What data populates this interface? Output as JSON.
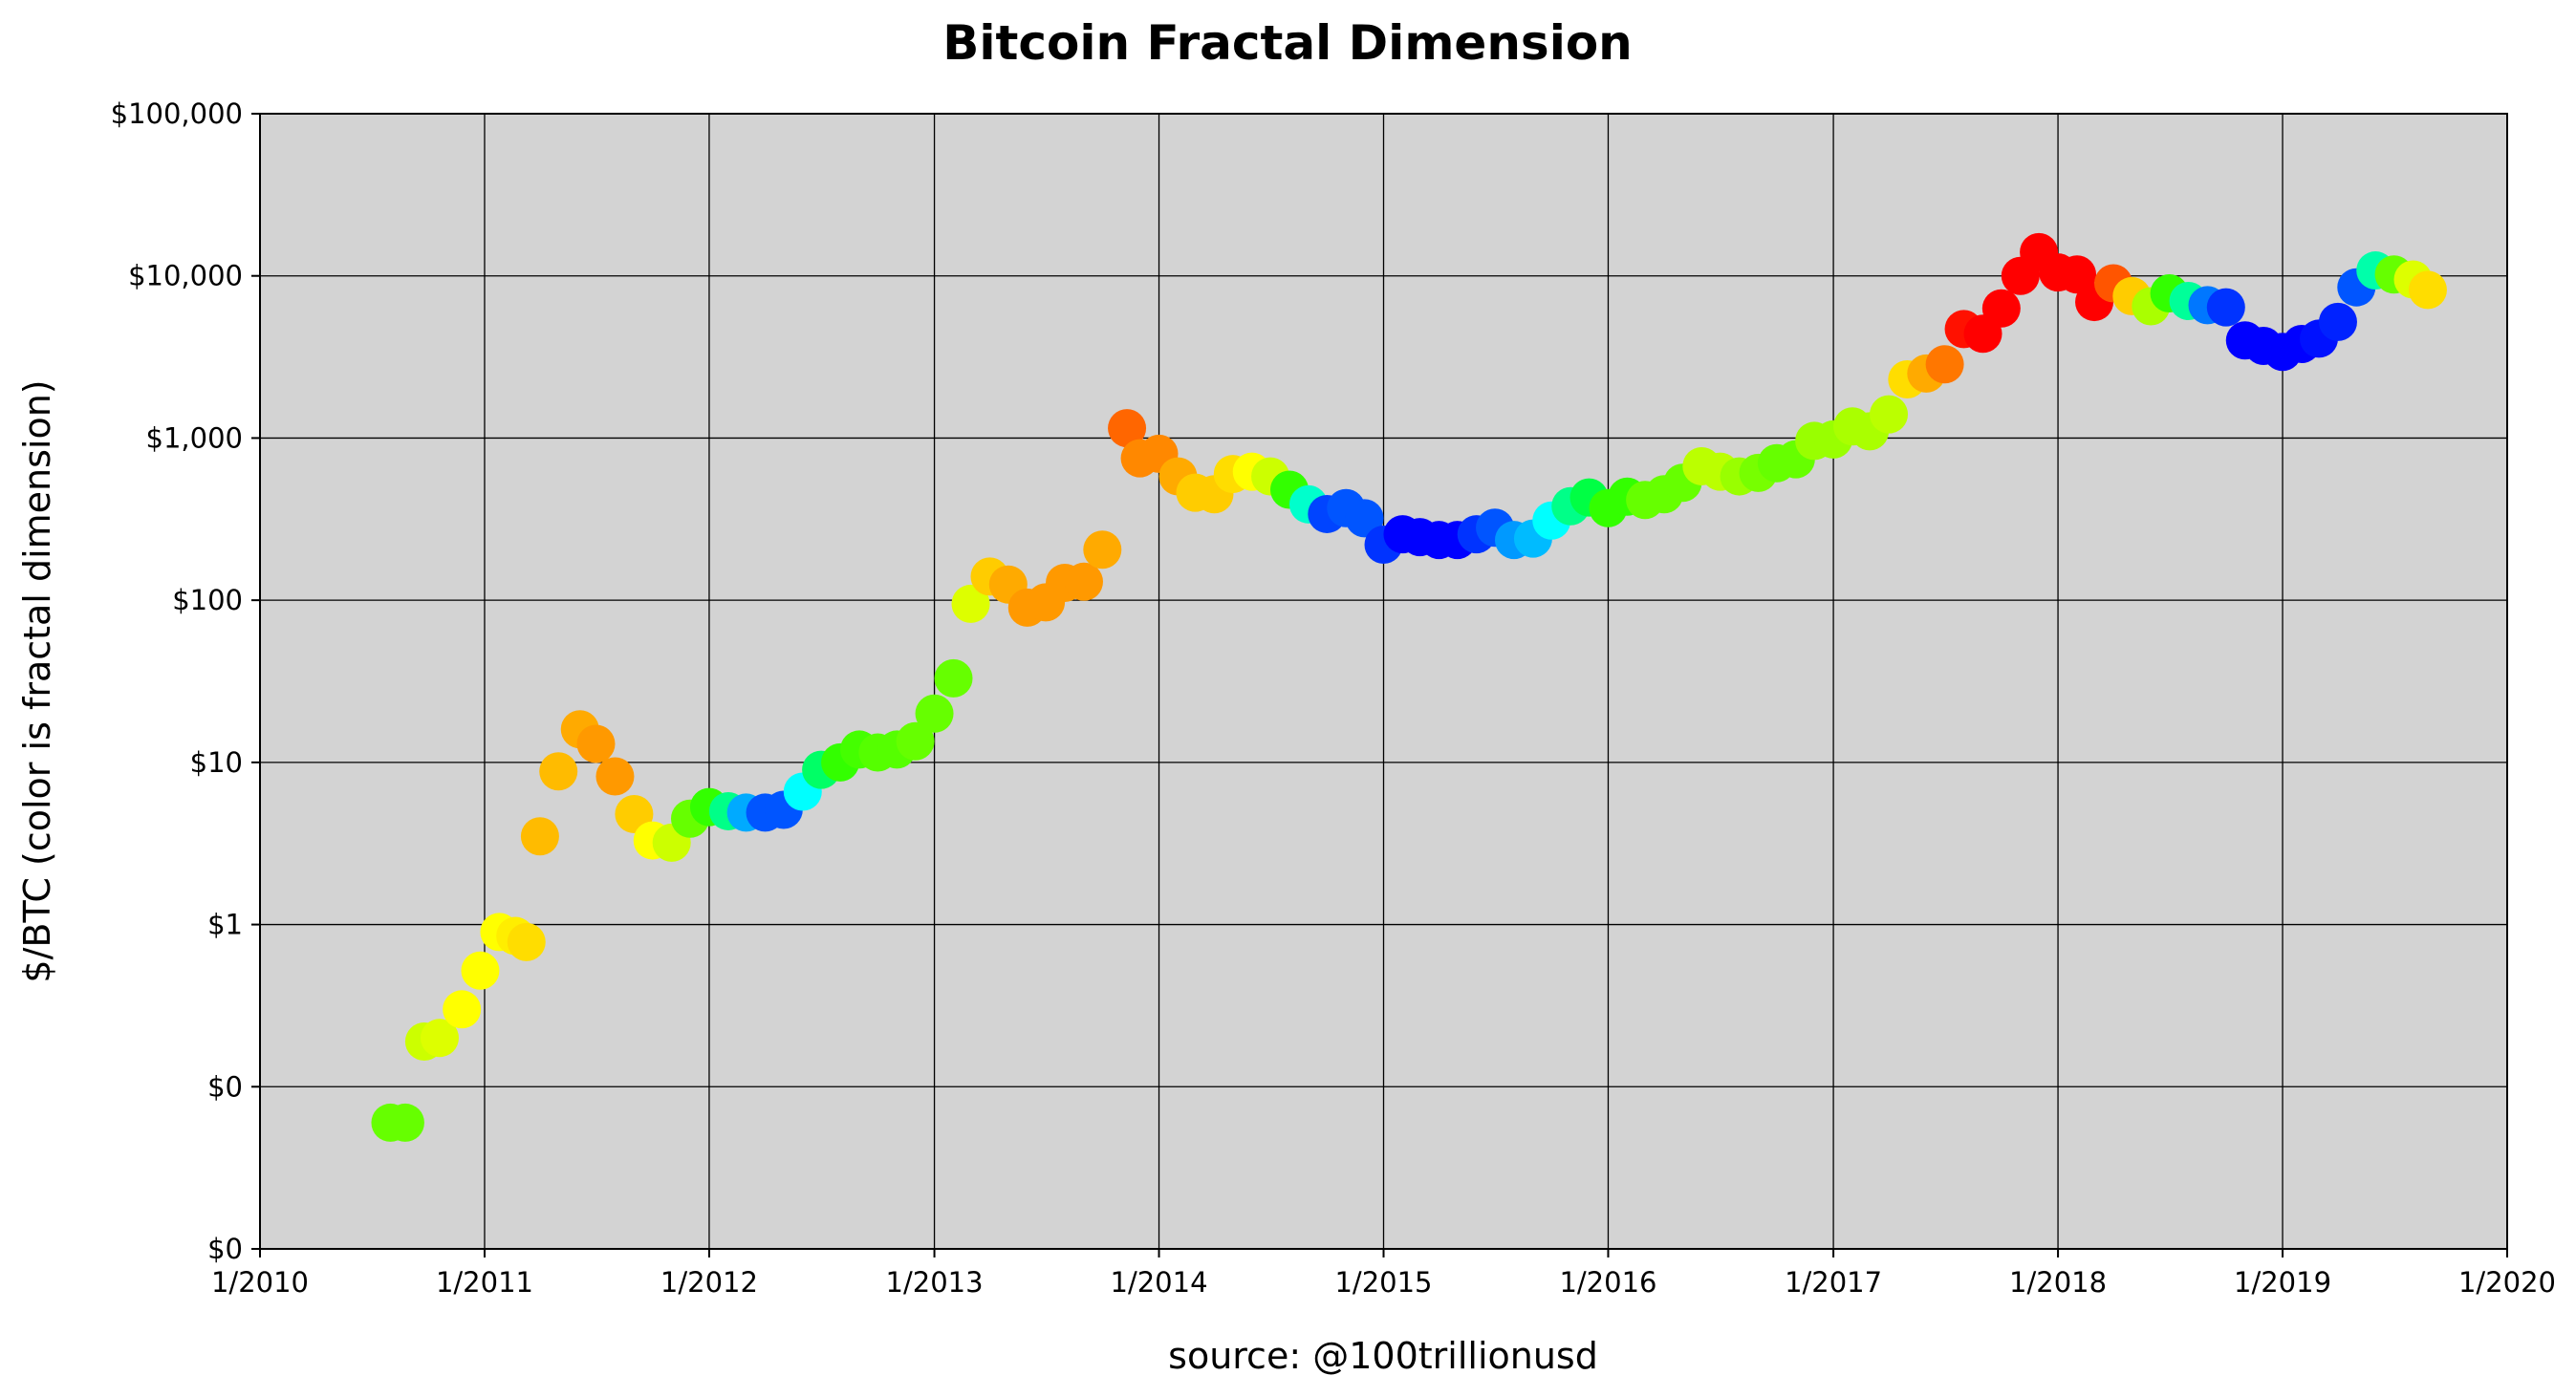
{
  "chart_data": {
    "type": "scatter",
    "title": "Bitcoin Fractal Dimension",
    "xlabel": "source: @100trillionusd",
    "ylabel": "$/BTC (color is fractal dimension)",
    "x_scale": "time",
    "y_scale": "log",
    "xlim": [
      "2010-01-01",
      "2020-01-01"
    ],
    "ylim": [
      0.01,
      100000
    ],
    "grid": true,
    "background": "#d3d3d3",
    "x_ticks": [
      {
        "date": "2010-01-01",
        "label": "1/2010"
      },
      {
        "date": "2011-01-01",
        "label": "1/2011"
      },
      {
        "date": "2012-01-01",
        "label": "1/2012"
      },
      {
        "date": "2013-01-01",
        "label": "1/2013"
      },
      {
        "date": "2014-01-01",
        "label": "1/2014"
      },
      {
        "date": "2015-01-01",
        "label": "1/2015"
      },
      {
        "date": "2016-01-01",
        "label": "1/2016"
      },
      {
        "date": "2017-01-01",
        "label": "1/2017"
      },
      {
        "date": "2018-01-01",
        "label": "1/2018"
      },
      {
        "date": "2019-01-01",
        "label": "1/2019"
      },
      {
        "date": "2020-01-01",
        "label": "1/2020"
      }
    ],
    "y_ticks": [
      {
        "value": 0.01,
        "label": "$0"
      },
      {
        "value": 0.1,
        "label": "$0"
      },
      {
        "value": 1,
        "label": "$1"
      },
      {
        "value": 10,
        "label": "$10"
      },
      {
        "value": 100,
        "label": "$100"
      },
      {
        "value": 1000,
        "label": "$1,000"
      },
      {
        "value": 10000,
        "label": "$10,000"
      },
      {
        "value": 100000,
        "label": "$100,000"
      }
    ],
    "points": [
      {
        "date": "2010-08-01",
        "price": 0.06,
        "color": "#66ff00"
      },
      {
        "date": "2010-08-25",
        "price": 0.06,
        "color": "#66ff00"
      },
      {
        "date": "2010-09-25",
        "price": 0.19,
        "color": "#ccff00"
      },
      {
        "date": "2010-10-20",
        "price": 0.2,
        "color": "#ddff00"
      },
      {
        "date": "2010-11-25",
        "price": 0.3,
        "color": "#ffff00"
      },
      {
        "date": "2010-12-25",
        "price": 0.52,
        "color": "#ffff00"
      },
      {
        "date": "2011-01-25",
        "price": 0.9,
        "color": "#ffff00"
      },
      {
        "date": "2011-02-20",
        "price": 0.85,
        "color": "#ffee00"
      },
      {
        "date": "2011-03-10",
        "price": 0.78,
        "color": "#ffdd00"
      },
      {
        "date": "2011-04-01",
        "price": 3.5,
        "color": "#ffbb00"
      },
      {
        "date": "2011-05-01",
        "price": 8.8,
        "color": "#ffbb00"
      },
      {
        "date": "2011-06-05",
        "price": 16,
        "color": "#ffaa00"
      },
      {
        "date": "2011-07-01",
        "price": 13,
        "color": "#ff9900"
      },
      {
        "date": "2011-08-01",
        "price": 8.2,
        "color": "#ff9900"
      },
      {
        "date": "2011-09-01",
        "price": 4.8,
        "color": "#ffcc00"
      },
      {
        "date": "2011-10-01",
        "price": 3.3,
        "color": "#ffff00"
      },
      {
        "date": "2011-11-01",
        "price": 3.2,
        "color": "#ccff00"
      },
      {
        "date": "2011-12-01",
        "price": 4.5,
        "color": "#66ff00"
      },
      {
        "date": "2012-01-01",
        "price": 5.3,
        "color": "#33ff00"
      },
      {
        "date": "2012-02-01",
        "price": 5.0,
        "color": "#00ff88"
      },
      {
        "date": "2012-03-01",
        "price": 4.9,
        "color": "#00aaff"
      },
      {
        "date": "2012-04-01",
        "price": 4.9,
        "color": "#0055ff"
      },
      {
        "date": "2012-05-01",
        "price": 5.1,
        "color": "#0055ff"
      },
      {
        "date": "2012-06-01",
        "price": 6.6,
        "color": "#00ffff"
      },
      {
        "date": "2012-07-01",
        "price": 9.0,
        "color": "#00ff66"
      },
      {
        "date": "2012-08-01",
        "price": 10,
        "color": "#33ff00"
      },
      {
        "date": "2012-09-01",
        "price": 12,
        "color": "#44ff00"
      },
      {
        "date": "2012-10-01",
        "price": 11.5,
        "color": "#55ff00"
      },
      {
        "date": "2012-11-01",
        "price": 12,
        "color": "#55ff00"
      },
      {
        "date": "2012-12-01",
        "price": 13.5,
        "color": "#66ff00"
      },
      {
        "date": "2013-01-01",
        "price": 20,
        "color": "#66ff00"
      },
      {
        "date": "2013-02-01",
        "price": 33,
        "color": "#66ff00"
      },
      {
        "date": "2013-03-01",
        "price": 95,
        "color": "#ddff00"
      },
      {
        "date": "2013-04-01",
        "price": 140,
        "color": "#ffcc00"
      },
      {
        "date": "2013-05-01",
        "price": 125,
        "color": "#ffaa00"
      },
      {
        "date": "2013-06-01",
        "price": 90,
        "color": "#ff9900"
      },
      {
        "date": "2013-07-01",
        "price": 97,
        "color": "#ff9900"
      },
      {
        "date": "2013-08-01",
        "price": 128,
        "color": "#ff9900"
      },
      {
        "date": "2013-09-01",
        "price": 130,
        "color": "#ff9900"
      },
      {
        "date": "2013-10-01",
        "price": 205,
        "color": "#ffaa00"
      },
      {
        "date": "2013-11-10",
        "price": 1150,
        "color": "#ff6600"
      },
      {
        "date": "2013-12-01",
        "price": 750,
        "color": "#ff8800"
      },
      {
        "date": "2014-01-01",
        "price": 800,
        "color": "#ff8800"
      },
      {
        "date": "2014-02-01",
        "price": 580,
        "color": "#ffaa00"
      },
      {
        "date": "2014-03-01",
        "price": 460,
        "color": "#ffcc00"
      },
      {
        "date": "2014-04-01",
        "price": 450,
        "color": "#ffcc00"
      },
      {
        "date": "2014-05-01",
        "price": 600,
        "color": "#ffdd00"
      },
      {
        "date": "2014-06-01",
        "price": 620,
        "color": "#ffff00"
      },
      {
        "date": "2014-07-01",
        "price": 580,
        "color": "#ccff00"
      },
      {
        "date": "2014-08-01",
        "price": 480,
        "color": "#33ff00"
      },
      {
        "date": "2014-09-01",
        "price": 390,
        "color": "#00ffcc"
      },
      {
        "date": "2014-10-01",
        "price": 340,
        "color": "#0044ff"
      },
      {
        "date": "2014-11-01",
        "price": 370,
        "color": "#0055ff"
      },
      {
        "date": "2014-12-01",
        "price": 320,
        "color": "#0055ff"
      },
      {
        "date": "2015-01-01",
        "price": 220,
        "color": "#0033ff"
      },
      {
        "date": "2015-02-01",
        "price": 255,
        "color": "#0000ff"
      },
      {
        "date": "2015-03-01",
        "price": 245,
        "color": "#0000ff"
      },
      {
        "date": "2015-04-01",
        "price": 235,
        "color": "#0000ff"
      },
      {
        "date": "2015-05-01",
        "price": 235,
        "color": "#0000ff"
      },
      {
        "date": "2015-06-01",
        "price": 255,
        "color": "#0033ff"
      },
      {
        "date": "2015-07-01",
        "price": 280,
        "color": "#0055ff"
      },
      {
        "date": "2015-08-01",
        "price": 235,
        "color": "#0099ff"
      },
      {
        "date": "2015-09-01",
        "price": 240,
        "color": "#00bbff"
      },
      {
        "date": "2015-10-01",
        "price": 310,
        "color": "#00ffff"
      },
      {
        "date": "2015-11-01",
        "price": 380,
        "color": "#00ff88"
      },
      {
        "date": "2015-12-01",
        "price": 430,
        "color": "#00ff44"
      },
      {
        "date": "2016-01-01",
        "price": 370,
        "color": "#33ff00"
      },
      {
        "date": "2016-02-01",
        "price": 435,
        "color": "#33ff00"
      },
      {
        "date": "2016-03-01",
        "price": 415,
        "color": "#66ff00"
      },
      {
        "date": "2016-04-01",
        "price": 450,
        "color": "#66ff00"
      },
      {
        "date": "2016-05-01",
        "price": 530,
        "color": "#66ff00"
      },
      {
        "date": "2016-06-01",
        "price": 670,
        "color": "#bbff00"
      },
      {
        "date": "2016-07-01",
        "price": 620,
        "color": "#bbff00"
      },
      {
        "date": "2016-08-01",
        "price": 580,
        "color": "#99ff00"
      },
      {
        "date": "2016-09-01",
        "price": 610,
        "color": "#77ff00"
      },
      {
        "date": "2016-10-01",
        "price": 700,
        "color": "#66ff00"
      },
      {
        "date": "2016-11-01",
        "price": 740,
        "color": "#66ff00"
      },
      {
        "date": "2016-12-01",
        "price": 960,
        "color": "#99ff00"
      },
      {
        "date": "2017-01-01",
        "price": 980,
        "color": "#99ff00"
      },
      {
        "date": "2017-02-01",
        "price": 1180,
        "color": "#aaff00"
      },
      {
        "date": "2017-03-01",
        "price": 1100,
        "color": "#aaff00"
      },
      {
        "date": "2017-04-01",
        "price": 1400,
        "color": "#bbff00"
      },
      {
        "date": "2017-05-01",
        "price": 2300,
        "color": "#ffdd00"
      },
      {
        "date": "2017-06-01",
        "price": 2500,
        "color": "#ffaa00"
      },
      {
        "date": "2017-07-01",
        "price": 2850,
        "color": "#ff7700"
      },
      {
        "date": "2017-08-01",
        "price": 4700,
        "color": "#ff1100"
      },
      {
        "date": "2017-09-01",
        "price": 4400,
        "color": "#ff0000"
      },
      {
        "date": "2017-10-01",
        "price": 6300,
        "color": "#ff0000"
      },
      {
        "date": "2017-11-01",
        "price": 10000,
        "color": "#ff0000"
      },
      {
        "date": "2017-12-01",
        "price": 14000,
        "color": "#ff0000"
      },
      {
        "date": "2018-01-01",
        "price": 10500,
        "color": "#ff0000"
      },
      {
        "date": "2018-02-01",
        "price": 10200,
        "color": "#ff0000"
      },
      {
        "date": "2018-03-01",
        "price": 6900,
        "color": "#ff0000"
      },
      {
        "date": "2018-04-01",
        "price": 9000,
        "color": "#ff5500"
      },
      {
        "date": "2018-05-01",
        "price": 7500,
        "color": "#ffcc00"
      },
      {
        "date": "2018-06-01",
        "price": 6500,
        "color": "#aaff00"
      },
      {
        "date": "2018-07-01",
        "price": 7800,
        "color": "#33ff00"
      },
      {
        "date": "2018-08-01",
        "price": 7000,
        "color": "#00ff99"
      },
      {
        "date": "2018-09-01",
        "price": 6600,
        "color": "#0077ff"
      },
      {
        "date": "2018-10-01",
        "price": 6400,
        "color": "#0033ff"
      },
      {
        "date": "2018-11-01",
        "price": 4000,
        "color": "#0000ff"
      },
      {
        "date": "2018-12-01",
        "price": 3700,
        "color": "#0000ff"
      },
      {
        "date": "2019-01-01",
        "price": 3400,
        "color": "#0000ff"
      },
      {
        "date": "2019-02-01",
        "price": 3800,
        "color": "#0000ff"
      },
      {
        "date": "2019-03-01",
        "price": 4100,
        "color": "#0011ff"
      },
      {
        "date": "2019-04-01",
        "price": 5200,
        "color": "#0022ff"
      },
      {
        "date": "2019-05-01",
        "price": 8500,
        "color": "#0055ff"
      },
      {
        "date": "2019-06-01",
        "price": 10800,
        "color": "#00ffaa"
      },
      {
        "date": "2019-07-01",
        "price": 10200,
        "color": "#66ff00"
      },
      {
        "date": "2019-08-01",
        "price": 9500,
        "color": "#ddff00"
      },
      {
        "date": "2019-08-25",
        "price": 8200,
        "color": "#ffdd00"
      }
    ]
  }
}
